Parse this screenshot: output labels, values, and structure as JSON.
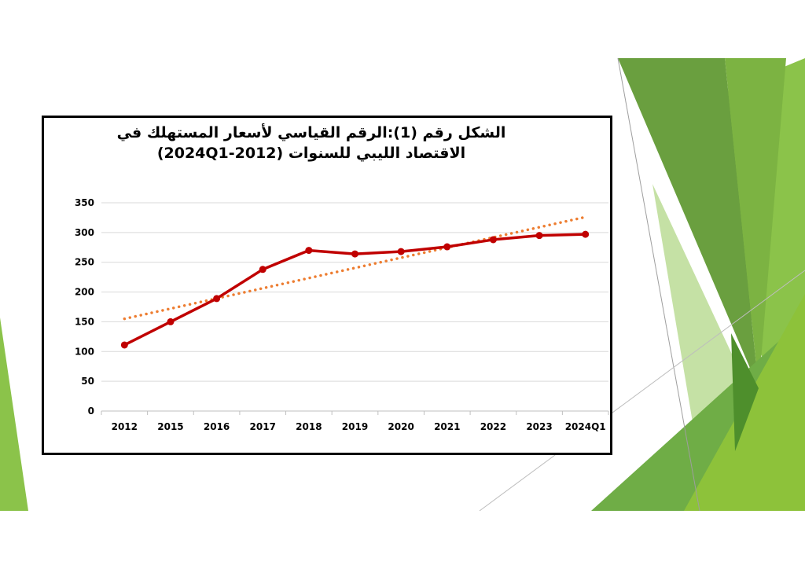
{
  "slide": {
    "accent_colors": [
      "#7cb342",
      "#8bc34a",
      "#4e8f2c",
      "#c5e1a5",
      "#a4cc5a",
      "#6a9f3f"
    ]
  },
  "chart_data": {
    "type": "line",
    "title_lines": [
      "الشكل رقم (1):الرقم القياسي لأسعار المستهلك في",
      "الاقتصاد الليبي للسنوات (2024Q1-2012)"
    ],
    "categories": [
      "2012",
      "2015",
      "2016",
      "2017",
      "2018",
      "2019",
      "2020",
      "2021",
      "2022",
      "2023",
      "2024Q1"
    ],
    "series": [
      {
        "values": [
          111,
          150,
          189,
          238,
          270,
          264,
          268,
          276,
          288,
          295,
          297
        ],
        "color": "#c00000",
        "style": "solid-with-markers"
      }
    ],
    "trendline": {
      "type": "linear",
      "color": "#ed7d31",
      "style": "dotted",
      "start": 155,
      "end": 326
    },
    "yticks": [
      0,
      50,
      100,
      150,
      200,
      250,
      300,
      350
    ],
    "ylim": [
      0,
      350
    ],
    "grid": true,
    "legend": "none",
    "xlabel": "",
    "ylabel": ""
  }
}
